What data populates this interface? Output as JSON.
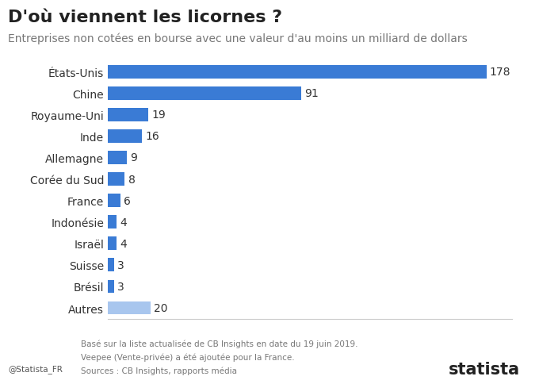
{
  "chart_data": {
    "type": "bar",
    "orientation": "horizontal",
    "title": "D'où viennent les licornes ?",
    "subtitle": "Entreprises non cotées en bourse avec une valeur d'au moins un milliard de dollars",
    "categories": [
      "États-Unis",
      "Chine",
      "Royaume-Uni",
      "Inde",
      "Allemagne",
      "Corée du Sud",
      "France",
      "Indonésie",
      "Israël",
      "Suisse",
      "Brésil",
      "Autres"
    ],
    "values": [
      178,
      91,
      19,
      16,
      9,
      8,
      6,
      4,
      4,
      3,
      3,
      20
    ],
    "colors": [
      "#3a7bd5",
      "#3a7bd5",
      "#3a7bd5",
      "#3a7bd5",
      "#3a7bd5",
      "#3a7bd5",
      "#3a7bd5",
      "#3a7bd5",
      "#3a7bd5",
      "#3a7bd5",
      "#3a7bd5",
      "#a8c6ee"
    ],
    "xlim": [
      0,
      190
    ],
    "xticks": [],
    "data_labels": true,
    "tick_labels": "y",
    "grid": false,
    "annotations": [
      "Basé sur la liste actualisée de CB Insights en date du 19 juin 2019.",
      "Veepee (Vente-privée) a été ajoutée pour la France.",
      "Sources : CB Insights, rapports média"
    ],
    "credit": "@Statista_FR",
    "brand": "statista"
  }
}
